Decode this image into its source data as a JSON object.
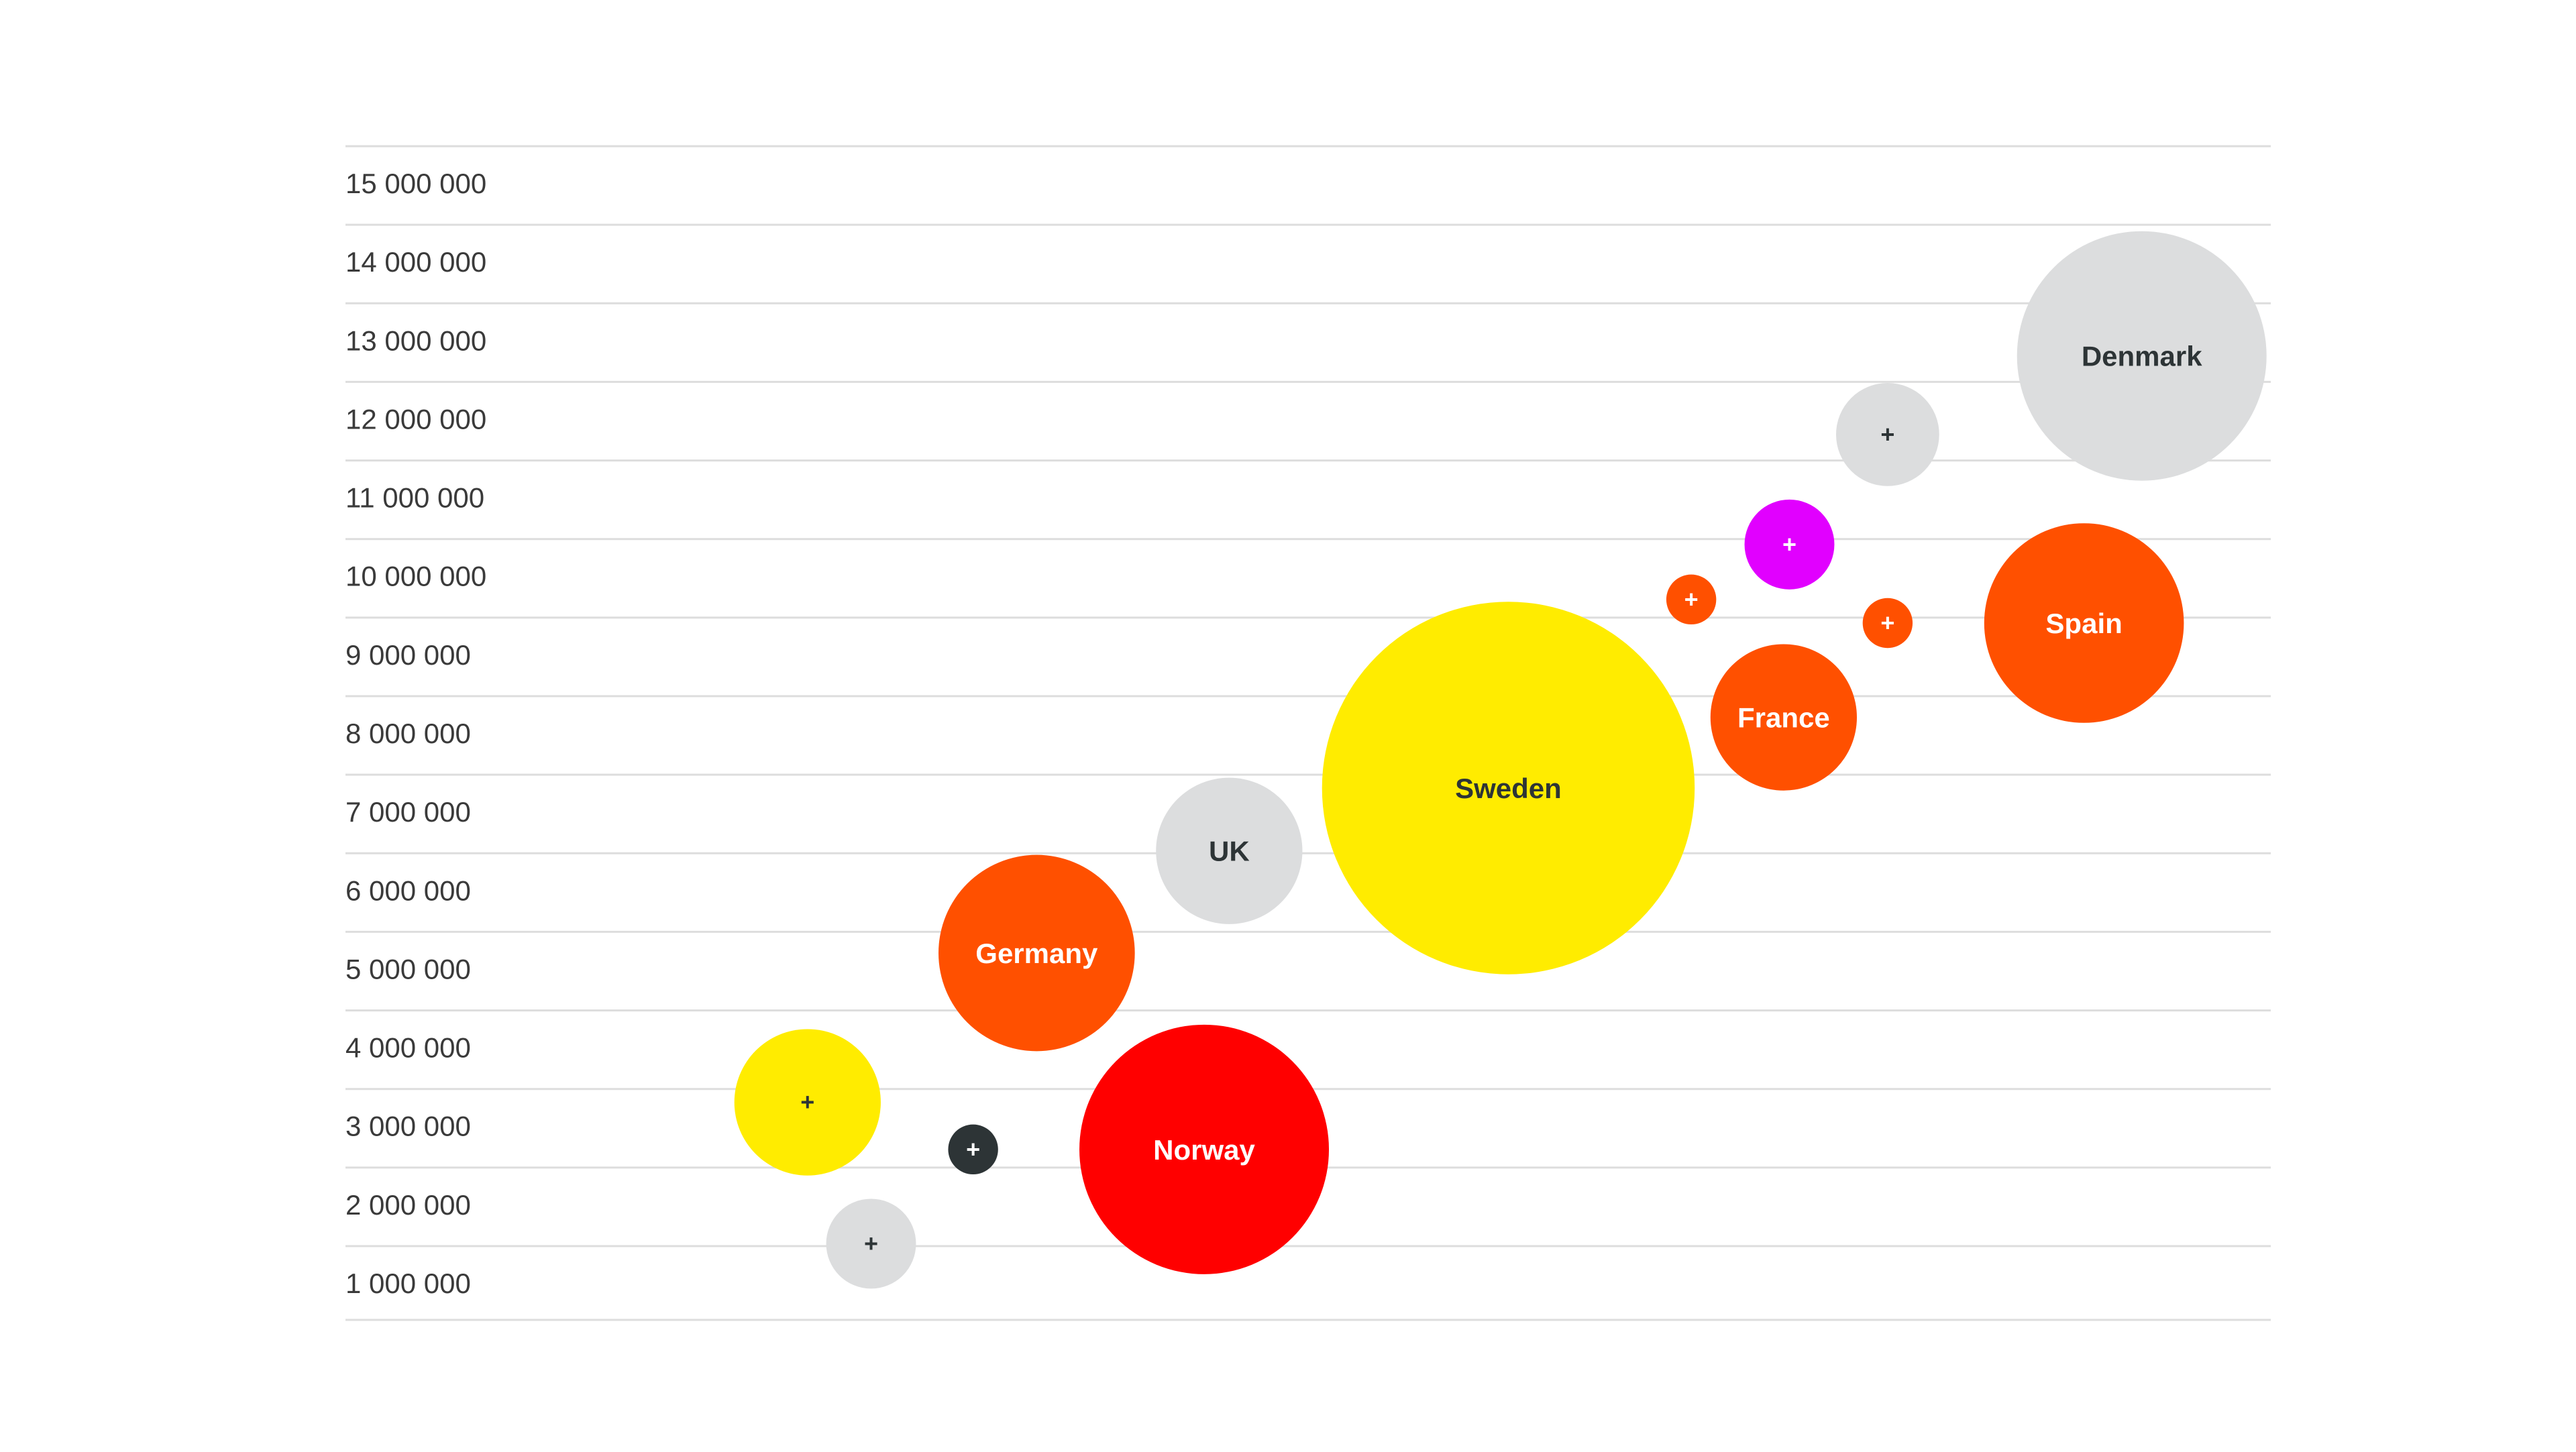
{
  "chart_data": {
    "type": "bubble",
    "title": "",
    "xlabel": "",
    "ylabel": "",
    "grid": true,
    "legend": "none",
    "ylim": [
      0,
      15500000
    ],
    "xlim": [
      0,
      100
    ],
    "y_ticks": [
      1000000,
      2000000,
      3000000,
      4000000,
      5000000,
      6000000,
      7000000,
      8000000,
      9000000,
      10000000,
      11000000,
      12000000,
      13000000,
      14000000,
      15000000
    ],
    "y_tick_labels": [
      "1 000 000",
      "2 000 000",
      "3 000 000",
      "4 000 000",
      "5 000 000",
      "6 000 000",
      "7 000 000",
      "8 000 000",
      "9 000 000",
      "10 000 000",
      "11 000 000",
      "12 000 000",
      "13 000 000",
      "14 000 000",
      "15 000 000"
    ],
    "bubbles": [
      {
        "label": "+",
        "x": 24,
        "y": 3300000,
        "size": 44,
        "color": "#FFEC00",
        "text_color": "#2d3436"
      },
      {
        "label": "+",
        "x": 27.3,
        "y": 1500000,
        "size": 27,
        "color": "#DCDDDE",
        "text_color": "#2d3436"
      },
      {
        "label": "+",
        "x": 32.6,
        "y": 2700000,
        "size": 15,
        "color": "#2D3436",
        "text_color": "#FFFFFF"
      },
      {
        "label": "Germany",
        "x": 35.9,
        "y": 5200000,
        "size": 59,
        "color": "#FF5000",
        "text_color": "#FFFFFF"
      },
      {
        "label": "Norway",
        "x": 44.6,
        "y": 2700000,
        "size": 75,
        "color": "#FF0000",
        "text_color": "#FFFFFF"
      },
      {
        "label": "UK",
        "x": 45.9,
        "y": 6500000,
        "size": 44,
        "color": "#DCDDDE",
        "text_color": "#2d3436"
      },
      {
        "label": "Sweden",
        "x": 60.4,
        "y": 7300000,
        "size": 112,
        "color": "#FFEC00",
        "text_color": "#2d3436"
      },
      {
        "label": "+",
        "x": 69.9,
        "y": 9700000,
        "size": 15,
        "color": "#FF5000",
        "text_color": "#FFFFFF"
      },
      {
        "label": "France",
        "x": 74.7,
        "y": 8200000,
        "size": 44,
        "color": "#FF5000",
        "text_color": "#FFFFFF"
      },
      {
        "label": "+",
        "x": 75,
        "y": 10400000,
        "size": 27,
        "color": "#E100FF",
        "text_color": "#FFFFFF"
      },
      {
        "label": "+",
        "x": 80.1,
        "y": 9400000,
        "size": 15,
        "color": "#FF5000",
        "text_color": "#FFFFFF"
      },
      {
        "label": "+",
        "x": 80.1,
        "y": 11800000,
        "size": 31,
        "color": "#DCDDDE",
        "text_color": "#2d3436"
      },
      {
        "label": "Spain",
        "x": 90.3,
        "y": 9400000,
        "size": 60,
        "color": "#FF5000",
        "text_color": "#FFFFFF"
      },
      {
        "label": "Denmark",
        "x": 93.3,
        "y": 12800000,
        "size": 75,
        "color": "#DCDDDE",
        "text_color": "#2d3436"
      }
    ]
  }
}
